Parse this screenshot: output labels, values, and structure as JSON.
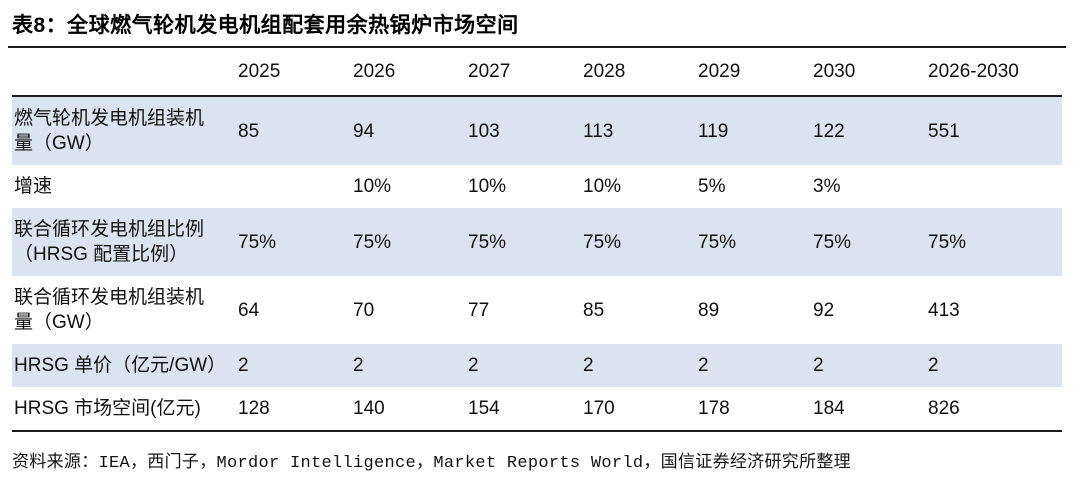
{
  "chart_data": {
    "type": "table",
    "title": "表8：全球燃气轮机发电机组配套用余热锅炉市场空间",
    "columns": [
      "2025",
      "2026",
      "2027",
      "2028",
      "2029",
      "2030",
      "2026-2030"
    ],
    "rows": [
      {
        "label": "燃气轮机发电机组装机量（GW）",
        "values": [
          "85",
          "94",
          "103",
          "113",
          "119",
          "122",
          "551"
        ]
      },
      {
        "label": "增速",
        "values": [
          "",
          "10%",
          "10%",
          "10%",
          "5%",
          "3%",
          ""
        ]
      },
      {
        "label": "联合循环发电机组比例（HRSG 配置比例）",
        "values": [
          "75%",
          "75%",
          "75%",
          "75%",
          "75%",
          "75%",
          "75%"
        ]
      },
      {
        "label": "联合循环发电机组装机量（GW）",
        "values": [
          "64",
          "70",
          "77",
          "85",
          "89",
          "92",
          "413"
        ]
      },
      {
        "label": "HRSG 单价（亿元/GW）",
        "values": [
          "2",
          "2",
          "2",
          "2",
          "2",
          "2",
          "2"
        ]
      },
      {
        "label": "HRSG 市场空间(亿元)",
        "values": [
          "128",
          "140",
          "154",
          "170",
          "178",
          "184",
          "826"
        ]
      }
    ],
    "source": "资料来源：IEA，西门子，Mordor Intelligence，Market Reports World，国信证券经济研究所整理",
    "layout": {
      "banded_rows": "odd rows shaded",
      "grid": "horizontal rules only"
    }
  },
  "colors": {
    "row_band": "#dbe3f1",
    "rule": "#1b1b1b",
    "text": "#111111"
  }
}
